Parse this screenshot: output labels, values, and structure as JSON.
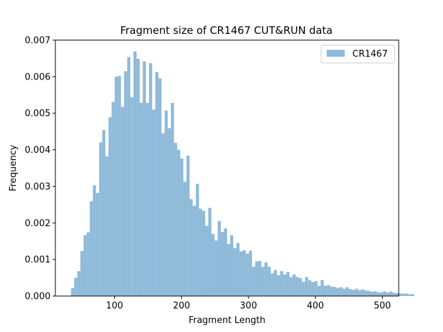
{
  "chart_data": {
    "type": "bar",
    "title": "Fragment size of CR1467 CUT&RUN data",
    "xlabel": "Fragment Length",
    "ylabel": "Frequency",
    "xlim": [
      11.6,
      524.4
    ],
    "ylim": [
      0,
      0.007
    ],
    "xticks": [
      100,
      200,
      300,
      400,
      500
    ],
    "xtick_labels": [
      "100",
      "200",
      "300",
      "400",
      "500"
    ],
    "yticks": [
      0.0,
      0.001,
      0.002,
      0.003,
      0.004,
      0.005,
      0.006,
      0.007
    ],
    "ytick_labels": [
      "0.000",
      "0.001",
      "0.002",
      "0.003",
      "0.004",
      "0.005",
      "0.006",
      "0.007"
    ],
    "grid": false,
    "legend": {
      "position": "top-right",
      "entries": [
        "CR1467"
      ]
    },
    "series": [
      {
        "name": "CR1467",
        "color": "#8fbad9",
        "bin_width": 4.66,
        "bin_start": 35,
        "values": [
          0.00022,
          0.0005,
          0.00068,
          0.00123,
          0.00166,
          0.00174,
          0.00259,
          0.00303,
          0.00282,
          0.0042,
          0.00454,
          0.00382,
          0.00489,
          0.00531,
          0.006,
          0.00602,
          0.00517,
          0.00615,
          0.00654,
          0.00544,
          0.00669,
          0.00649,
          0.00529,
          0.00642,
          0.00528,
          0.00637,
          0.0051,
          0.00613,
          0.00595,
          0.00445,
          0.00507,
          0.00459,
          0.00528,
          0.00419,
          0.004,
          0.00376,
          0.00313,
          0.00384,
          0.00265,
          0.00247,
          0.00307,
          0.00239,
          0.00233,
          0.00192,
          0.00241,
          0.0017,
          0.00152,
          0.00205,
          0.00175,
          0.00185,
          0.00142,
          0.00166,
          0.00131,
          0.00145,
          0.00122,
          0.00125,
          0.00116,
          0.00124,
          0.0008,
          0.00095,
          0.00096,
          0.0008,
          0.00092,
          0.0008,
          0.00062,
          0.00071,
          0.00057,
          0.00068,
          0.00059,
          0.00066,
          0.00052,
          0.00059,
          0.00052,
          0.00049,
          0.00039,
          0.00052,
          0.00043,
          0.00038,
          0.00041,
          0.00028,
          0.00044,
          0.00028,
          0.0003,
          0.00026,
          0.00025,
          0.00022,
          0.00024,
          0.0002,
          0.00024,
          0.00019,
          0.00017,
          0.0002,
          0.00016,
          0.00018,
          0.00015,
          0.00014,
          0.00012,
          0.00013,
          0.0001,
          0.0001,
          0.00013,
          9e-05,
          0.00012,
          9e-05,
          8e-05,
          7e-05,
          6e-05,
          7e-05,
          5e-05,
          5e-05
        ]
      }
    ]
  }
}
